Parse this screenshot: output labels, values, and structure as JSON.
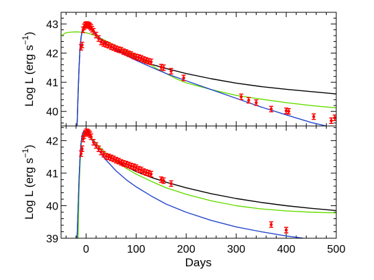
{
  "chart_data": {
    "type": "line",
    "layout": "two vertically stacked panels sharing the x axis",
    "xlabel": "Days",
    "x_ticks": [
      "0",
      "100",
      "200",
      "300",
      "400",
      "500"
    ],
    "xlim": [
      -50,
      500
    ],
    "colors": {
      "black_model": "#000000",
      "green_model": "#66dd00",
      "blue_model": "#2244cc",
      "observed": "#ff0000"
    },
    "panels": [
      {
        "ylabel": "Log L (erg s",
        "ylabel_sup": "−1",
        "ylabel_close": ")",
        "ylim": [
          39.5,
          43.4
        ],
        "y_ticks": [
          "40",
          "41",
          "42",
          "43"
        ],
        "series": [
          {
            "color": "black",
            "x": [
              -18,
              -16,
              -14,
              -12,
              -10,
              -8,
              -6,
              -4,
              -2,
              0,
              5,
              10,
              20,
              30,
              40,
              60,
              80,
              100,
              130,
              160,
              200,
              250,
              300,
              350,
              400,
              450,
              500
            ],
            "y": [
              39.5,
              40.6,
              41.5,
              42.2,
              42.55,
              42.75,
              42.88,
              42.95,
              42.98,
              42.98,
              42.92,
              42.82,
              42.65,
              42.48,
              42.33,
              42.12,
              41.95,
              41.8,
              41.62,
              41.47,
              41.3,
              41.12,
              40.97,
              40.85,
              40.76,
              40.68,
              40.6
            ]
          },
          {
            "color": "green",
            "x": [
              -50,
              -40,
              -30,
              -20,
              -10,
              0,
              10,
              20,
              30,
              40,
              50,
              60,
              80,
              100,
              120,
              140,
              160,
              180,
              200,
              250,
              300,
              350,
              400,
              450,
              500
            ],
            "y": [
              42.6,
              42.7,
              42.72,
              42.73,
              42.72,
              42.7,
              42.65,
              42.58,
              42.5,
              42.42,
              42.33,
              42.25,
              42.08,
              41.9,
              41.7,
              41.48,
              41.3,
              41.12,
              40.98,
              40.75,
              40.55,
              40.42,
              40.3,
              40.2,
              40.12
            ]
          },
          {
            "color": "blue",
            "x": [
              -18,
              -16,
              -14,
              -12,
              -10,
              -8,
              -6,
              -4,
              -2,
              0,
              5,
              10,
              20,
              30,
              40,
              60,
              80,
              100,
              130,
              160,
              200,
              250,
              300,
              350,
              400,
              450,
              500
            ],
            "y": [
              39.5,
              40.6,
              41.5,
              42.2,
              42.55,
              42.75,
              42.88,
              42.95,
              42.98,
              42.98,
              42.92,
              42.82,
              42.65,
              42.48,
              42.33,
              42.1,
              41.92,
              41.75,
              41.52,
              41.3,
              41.05,
              40.75,
              40.45,
              40.15,
              39.88,
              39.62,
              39.42
            ]
          },
          {
            "color": "red",
            "style": "errorbar",
            "x": [
              -10,
              -8,
              -6,
              -4,
              -2,
              0,
              2,
              4,
              6,
              8,
              10,
              12,
              15,
              20,
              25,
              30,
              35,
              40,
              45,
              50,
              55,
              60,
              65,
              70,
              75,
              80,
              85,
              90,
              95,
              100,
              105,
              110,
              115,
              120,
              125,
              130,
              150,
              155,
              170,
              195,
              310,
              325,
              340,
              370,
              400,
              405,
              455,
              490,
              497
            ],
            "y": [
              42.2,
              42.28,
              42.8,
              42.9,
              42.95,
              42.98,
              42.98,
              42.97,
              42.95,
              42.92,
              42.88,
              42.82,
              42.75,
              42.62,
              42.5,
              42.38,
              42.33,
              42.3,
              42.27,
              42.22,
              42.19,
              42.15,
              42.12,
              42.1,
              42.05,
              42.02,
              41.98,
              41.95,
              41.9,
              41.87,
              41.85,
              41.82,
              41.78,
              41.75,
              41.72,
              41.7,
              41.52,
              41.5,
              41.38,
              41.15,
              40.5,
              40.38,
              40.3,
              40.08,
              40.02,
              40.0,
              39.82,
              39.68,
              39.78
            ]
          }
        ]
      },
      {
        "ylabel": "Log L (erg s",
        "ylabel_sup": "−1",
        "ylabel_close": ")",
        "ylim": [
          39.0,
          42.45
        ],
        "y_ticks": [
          "39",
          "40",
          "41",
          "42"
        ],
        "series": [
          {
            "color": "black",
            "x": [
              -18,
              -16,
              -14,
              -12,
              -10,
              -8,
              -6,
              -4,
              -2,
              0,
              5,
              10,
              20,
              30,
              40,
              60,
              80,
              100,
              130,
              160,
              200,
              250,
              300,
              350,
              400,
              450,
              500
            ],
            "y": [
              39.0,
              39.9,
              40.8,
              41.5,
              41.95,
              42.15,
              42.25,
              42.28,
              42.28,
              42.27,
              42.2,
              42.1,
              41.92,
              41.75,
              41.6,
              41.38,
              41.2,
              41.05,
              40.87,
              40.72,
              40.55,
              40.37,
              40.22,
              40.1,
              40.0,
              39.92,
              39.85
            ]
          },
          {
            "color": "green",
            "x": [
              -16,
              -14,
              -12,
              -10,
              -8,
              -6,
              -4,
              -2,
              0,
              5,
              10,
              20,
              30,
              40,
              60,
              80,
              100,
              130,
              160,
              200,
              250,
              300,
              350,
              400,
              450,
              500
            ],
            "y": [
              39.0,
              40.5,
              41.3,
              41.85,
              42.1,
              42.22,
              42.27,
              42.28,
              42.27,
              42.2,
              42.1,
              41.92,
              41.75,
              41.6,
              41.36,
              41.15,
              40.97,
              40.75,
              40.55,
              40.35,
              40.15,
              40.0,
              39.9,
              39.84,
              39.8,
              39.78
            ]
          },
          {
            "color": "blue",
            "x": [
              -18,
              -16,
              -14,
              -12,
              -10,
              -8,
              -6,
              -4,
              -2,
              0,
              5,
              10,
              20,
              30,
              40,
              60,
              80,
              100,
              130,
              160,
              200,
              250,
              300,
              350,
              400,
              434
            ],
            "y": [
              39.0,
              39.9,
              40.8,
              41.5,
              41.95,
              42.15,
              42.25,
              42.28,
              42.28,
              42.27,
              42.18,
              42.06,
              41.82,
              41.6,
              41.4,
              41.07,
              40.8,
              40.58,
              40.3,
              40.05,
              39.8,
              39.55,
              39.35,
              39.2,
              39.07,
              39.0
            ]
          },
          {
            "color": "red",
            "style": "errorbar",
            "x": [
              -10,
              -8,
              -6,
              -4,
              -2,
              0,
              2,
              4,
              6,
              8,
              10,
              15,
              20,
              25,
              30,
              35,
              40,
              45,
              50,
              55,
              60,
              65,
              70,
              75,
              80,
              85,
              90,
              95,
              100,
              105,
              110,
              115,
              120,
              125,
              130,
              150,
              155,
              170,
              370,
              400
            ],
            "y": [
              41.6,
              41.75,
              42.05,
              42.15,
              42.22,
              42.27,
              42.27,
              42.25,
              42.22,
              42.18,
              42.12,
              41.95,
              41.85,
              41.75,
              41.65,
              41.58,
              41.52,
              41.5,
              41.47,
              41.44,
              41.4,
              41.37,
              41.33,
              41.3,
              41.28,
              41.25,
              41.22,
              41.2,
              41.17,
              41.12,
              41.1,
              41.05,
              41.02,
              41.0,
              40.97,
              40.8,
              40.77,
              40.68,
              39.42,
              39.25
            ]
          }
        ]
      }
    ]
  }
}
